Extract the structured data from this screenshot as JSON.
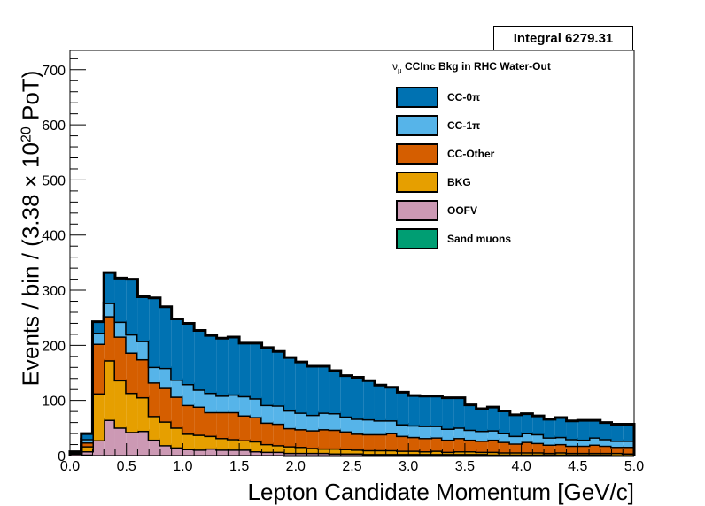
{
  "stat_box": {
    "label": "Integral 6279.31"
  },
  "legend": {
    "title_prefix": "ν",
    "title_sub": "μ",
    "title_text": " CCInc Bkg in RHC Water-Out",
    "items": [
      {
        "label": "CC-0π",
        "color": "#0072b2"
      },
      {
        "label": "CC-1π",
        "color": "#56b4e9"
      },
      {
        "label": "CC-Other",
        "color": "#d55e00"
      },
      {
        "label": "BKG",
        "color": "#e69f00"
      },
      {
        "label": "OOFV",
        "color": "#cc99b4"
      },
      {
        "label": "Sand muons",
        "color": "#009e73"
      }
    ]
  },
  "axes": {
    "ylabel_pre": "Events / bin / (3.38 × 10",
    "ylabel_sup": "20",
    "ylabel_post": " PoT)",
    "xlabel": "Lepton Candidate Momentum [GeV/c]"
  },
  "chart_data": {
    "type": "area",
    "stacked": true,
    "histogram": true,
    "bin_edges": [
      0.0,
      0.1,
      0.2,
      0.3,
      0.4,
      0.5,
      0.6,
      0.7,
      0.8,
      0.9,
      1.0,
      1.1,
      1.2,
      1.3,
      1.4,
      1.5,
      1.6,
      1.7,
      1.8,
      1.9,
      2.0,
      2.1,
      2.2,
      2.3,
      2.4,
      2.5,
      2.6,
      2.7,
      2.8,
      2.9,
      3.0,
      3.1,
      3.2,
      3.3,
      3.4,
      3.5,
      3.6,
      3.7,
      3.8,
      3.9,
      4.0,
      4.1,
      4.2,
      4.3,
      4.4,
      4.5,
      4.6,
      4.7,
      4.8,
      4.9,
      5.0
    ],
    "xlim": [
      0,
      5
    ],
    "ylim": [
      0,
      735
    ],
    "xticks": [
      "0.0",
      "0.5",
      "1.0",
      "1.5",
      "2.0",
      "2.5",
      "3.0",
      "3.5",
      "4.0",
      "4.5",
      "5.0"
    ],
    "yticks": [
      "0",
      "100",
      "200",
      "300",
      "400",
      "500",
      "600",
      "700"
    ],
    "series": [
      {
        "name": "Sand muons",
        "values": [
          1,
          2,
          1,
          1,
          1,
          1,
          1,
          1,
          1,
          1,
          1,
          1,
          1,
          1,
          1,
          1,
          1,
          1,
          1,
          0,
          0,
          0,
          0,
          0,
          0,
          0,
          0,
          0,
          0,
          0,
          0,
          0,
          0,
          0,
          0,
          0,
          0,
          0,
          0,
          0,
          0,
          0,
          0,
          0,
          0,
          0,
          0,
          0,
          0,
          0
        ]
      },
      {
        "name": "OOFV",
        "values": [
          3,
          6,
          27,
          64,
          50,
          42,
          44,
          28,
          18,
          14,
          11,
          10,
          12,
          10,
          10,
          10,
          7,
          6,
          6,
          5,
          5,
          5,
          5,
          4,
          4,
          4,
          3,
          3,
          3,
          3,
          3,
          3,
          3,
          3,
          3,
          3,
          3,
          2,
          2,
          2,
          2,
          2,
          2,
          2,
          2,
          2,
          2,
          2,
          1,
          1
        ]
      },
      {
        "name": "BKG",
        "values": [
          0,
          9,
          85,
          108,
          86,
          71,
          61,
          43,
          43,
          36,
          28,
          27,
          23,
          21,
          19,
          17,
          18,
          14,
          12,
          12,
          11,
          9,
          8,
          9,
          8,
          7,
          7,
          7,
          7,
          6,
          6,
          5,
          6,
          4,
          5,
          5,
          4,
          5,
          4,
          4,
          4,
          4,
          3,
          4,
          3,
          3,
          3,
          3,
          4,
          3
        ]
      },
      {
        "name": "CC-Other",
        "values": [
          1,
          7,
          90,
          80,
          79,
          73,
          69,
          61,
          61,
          56,
          52,
          51,
          43,
          47,
          49,
          45,
          44,
          39,
          39,
          33,
          32,
          32,
          35,
          34,
          32,
          29,
          29,
          29,
          31,
          27,
          25,
          24,
          24,
          22,
          24,
          21,
          20,
          22,
          19,
          16,
          19,
          17,
          15,
          15,
          13,
          13,
          15,
          13,
          11,
          12
        ]
      },
      {
        "name": "CC-1π",
        "values": [
          1,
          6,
          20,
          24,
          27,
          33,
          33,
          28,
          36,
          31,
          38,
          31,
          35,
          30,
          32,
          35,
          34,
          32,
          33,
          32,
          30,
          28,
          30,
          30,
          27,
          27,
          27,
          25,
          23,
          21,
          21,
          22,
          21,
          20,
          19,
          18,
          18,
          17,
          16,
          14,
          16,
          16,
          13,
          13,
          12,
          11,
          13,
          12,
          11,
          11
        ]
      },
      {
        "name": "CC-0π",
        "values": [
          1,
          10,
          20,
          55,
          79,
          100,
          80,
          125,
          111,
          110,
          110,
          107,
          104,
          104,
          104,
          96,
          100,
          104,
          98,
          96,
          92,
          88,
          84,
          77,
          74,
          75,
          70,
          64,
          60,
          58,
          54,
          54,
          54,
          56,
          54,
          45,
          40,
          42,
          40,
          38,
          35,
          33,
          33,
          35,
          33,
          35,
          31,
          30,
          30,
          30
        ]
      }
    ]
  }
}
